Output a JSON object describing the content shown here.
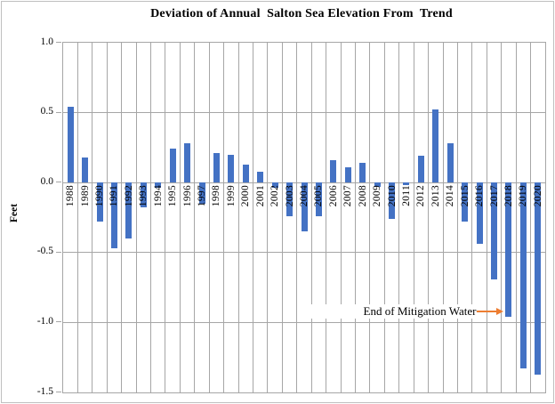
{
  "chart_data": {
    "type": "bar",
    "title": "Deviation of Annual  Salton Sea Elevation From  Trend",
    "ylabel": "Feet",
    "xlabel": "",
    "categories": [
      "1988",
      "1989",
      "1990",
      "1991",
      "1992",
      "1993",
      "1994",
      "1995",
      "1996",
      "1997",
      "1998",
      "1999",
      "2000",
      "2001",
      "2002",
      "2003",
      "2004",
      "2005",
      "2006",
      "2007",
      "2008",
      "2009",
      "2010",
      "2011",
      "2012",
      "2013",
      "2014",
      "2015",
      "2016",
      "2017",
      "2018",
      "2019",
      "2020"
    ],
    "values": [
      0.54,
      0.18,
      -0.28,
      -0.47,
      -0.4,
      -0.18,
      -0.04,
      0.24,
      0.28,
      -0.15,
      0.21,
      0.2,
      0.13,
      0.08,
      -0.04,
      -0.24,
      -0.35,
      -0.24,
      0.16,
      0.11,
      0.14,
      -0.03,
      -0.26,
      -0.02,
      0.19,
      0.52,
      0.28,
      -0.28,
      -0.44,
      -0.69,
      -0.96,
      -1.33,
      -1.37
    ],
    "ylim": [
      -1.5,
      1.0
    ],
    "yticks": [
      1.0,
      0.5,
      0.0,
      -0.5,
      -1.0,
      -1.5
    ],
    "ytick_labels": [
      "1.0",
      "0.5",
      "0.0",
      "-0.5",
      "-1.0",
      "-1.5"
    ],
    "grid": true,
    "legend": "none",
    "bar_color": "#4472c4",
    "gridline_color": "#a6a6a6",
    "annotation": {
      "text": "End of Mitigation Water",
      "points_to": "2018",
      "arrow_color": "#ed7d31"
    }
  }
}
